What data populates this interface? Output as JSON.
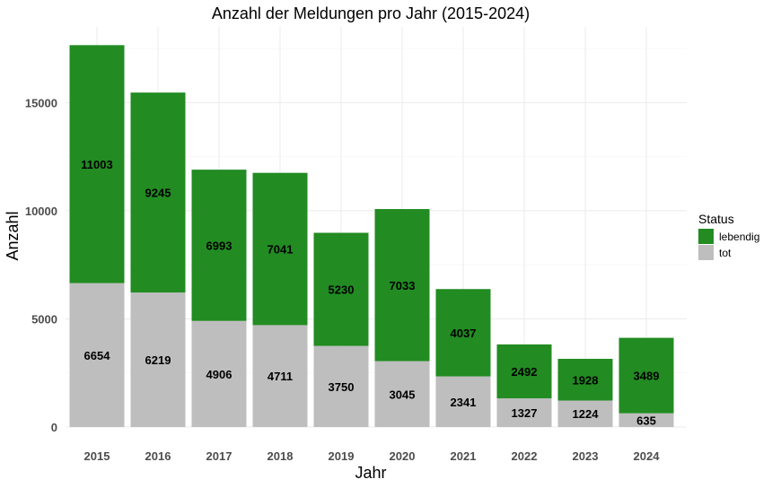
{
  "chart_data": {
    "type": "bar",
    "stacked": true,
    "title": "Anzahl der Meldungen pro Jahr (2015-2024)",
    "xlabel": "Jahr",
    "ylabel": "Anzahl",
    "categories": [
      "2015",
      "2016",
      "2017",
      "2018",
      "2019",
      "2020",
      "2021",
      "2022",
      "2023",
      "2024"
    ],
    "series": [
      {
        "name": "tot",
        "color": "#bebebe",
        "values": [
          6654,
          6219,
          4906,
          4711,
          3750,
          3045,
          2341,
          1327,
          1224,
          635
        ]
      },
      {
        "name": "lebendig",
        "color": "#228b22",
        "values": [
          11003,
          9245,
          6993,
          7041,
          5230,
          7033,
          4037,
          2492,
          1928,
          3489
        ]
      }
    ],
    "yticks": [
      "0",
      "5000",
      "10000",
      "15000"
    ],
    "ylim": [
      0,
      18500
    ],
    "grid": true,
    "legend": {
      "title": "Status",
      "placement": "right",
      "entries": [
        "lebendig",
        "tot"
      ]
    }
  }
}
